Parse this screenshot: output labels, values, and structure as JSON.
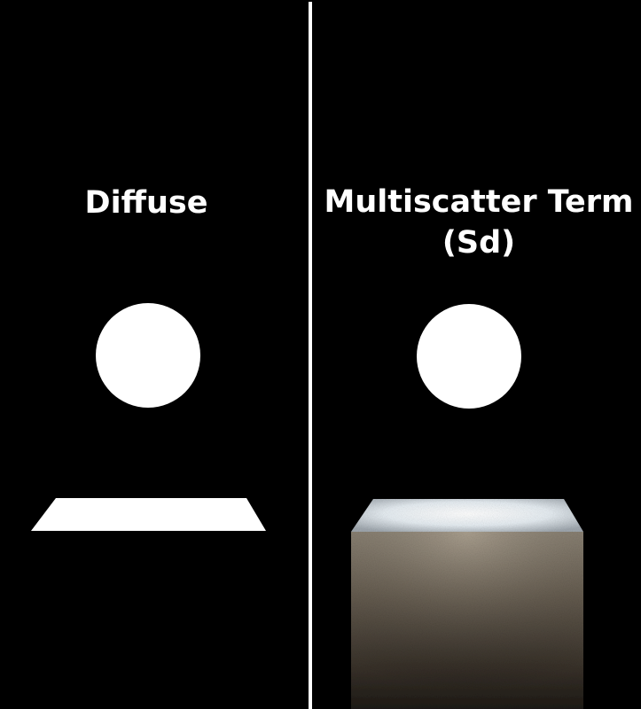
{
  "panels": {
    "left": {
      "title": "Diffuse"
    },
    "right": {
      "title_line1": "Multiscatter Term",
      "title_line2": "(Sd)"
    }
  },
  "colors": {
    "background": "#000000",
    "divider": "#ffffff",
    "text": "#ffffff",
    "light_surface": "#ffffff",
    "cube_side_light": "#8a8070",
    "cube_side_dark": "#1a1612"
  }
}
